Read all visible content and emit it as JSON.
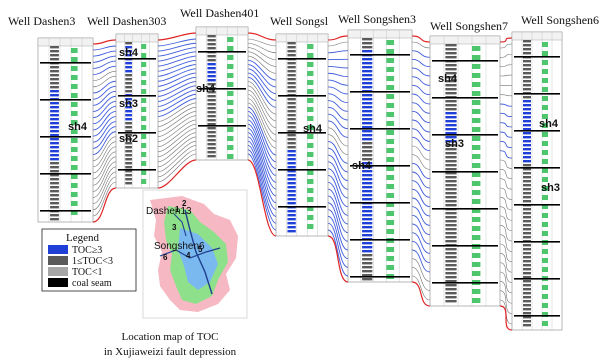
{
  "wells": [
    {
      "name": "Well Dashen3",
      "segments": [
        "sh4"
      ]
    },
    {
      "name": "Well Dashen303",
      "segments": [
        "sh4",
        "sh3",
        "sh2"
      ]
    },
    {
      "name": "Well Dashen401",
      "segments": [
        "sh4"
      ]
    },
    {
      "name": "Well Songsl",
      "segments": [
        "sh4"
      ]
    },
    {
      "name": "Well Songshen3",
      "segments": [
        "sh4"
      ]
    },
    {
      "name": "Well Songshen7",
      "segments": [
        "sh4",
        "sh3"
      ]
    },
    {
      "name": "Well Songshen6",
      "segments": [
        "sh4",
        "sh3"
      ]
    }
  ],
  "legend": {
    "title": "Legend",
    "items": [
      {
        "label": "TOC≥3",
        "color": "#1f3fd6"
      },
      {
        "label": "1≤TOC<3",
        "color": "#5a5a5a"
      },
      {
        "label": "TOC<1",
        "color": "#a6a6a6"
      },
      {
        "label": "coal seam",
        "color": "#000000"
      }
    ]
  },
  "map": {
    "labels": [
      "Dashen13",
      "Songshen6"
    ],
    "numbers": [
      "1",
      "2",
      "3",
      "4",
      "5",
      "6"
    ],
    "caption_line1": "Location map of TOC",
    "caption_line2": "in Xujiaweizi fault depression"
  },
  "colors": {
    "high_toc": "#1f3fd6",
    "mid_toc": "#5a5a5a",
    "low_toc": "#a6a6a6",
    "coal": "#000000",
    "boundary": "#e02424",
    "lithology": "#22b84a",
    "map_green": "#8fe08a",
    "map_pink": "#f6b8c2",
    "map_blue": "#7ab8f0"
  }
}
